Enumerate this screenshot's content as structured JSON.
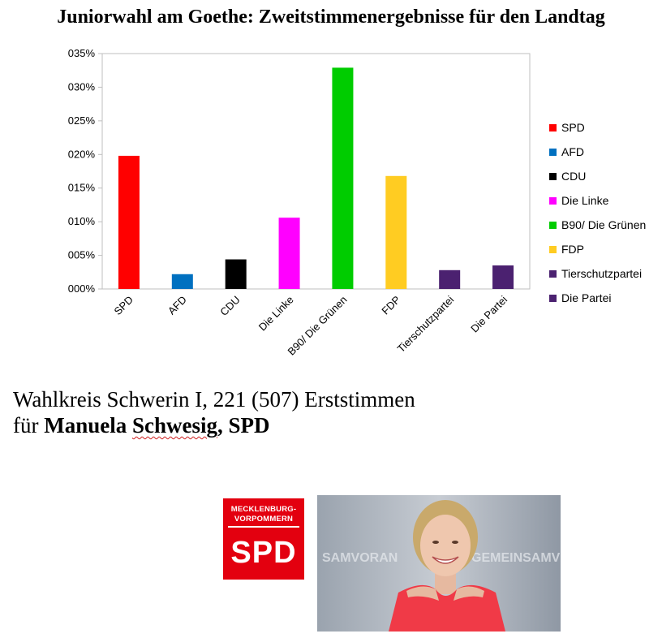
{
  "title": "Juniorwahl am Goethe: Zweitstimmenergebnisse für den Landtag",
  "chart_data": {
    "type": "bar",
    "categories": [
      "SPD",
      "AFD",
      "CDU",
      "Die Linke",
      "B90/ Die Grünen",
      "FDP",
      "Tierschutzpartei",
      "Die Partei"
    ],
    "values": [
      19.8,
      2.2,
      4.4,
      10.6,
      32.9,
      16.8,
      2.8,
      3.5
    ],
    "colors": [
      "#ff0000",
      "#0070c0",
      "#000000",
      "#ff00ff",
      "#00cc00",
      "#ffcc22",
      "#4b2170",
      "#4b2170"
    ],
    "yticks": [
      0,
      5,
      10,
      15,
      20,
      25,
      30,
      35
    ],
    "ytick_labels": [
      "000%",
      "005%",
      "010%",
      "015%",
      "020%",
      "025%",
      "030%",
      "035%"
    ],
    "ylim": [
      0,
      35
    ],
    "grid": false,
    "legend_position": "right",
    "legend": [
      {
        "label": "SPD",
        "color": "#ff0000"
      },
      {
        "label": "AFD",
        "color": "#0070c0"
      },
      {
        "label": "CDU",
        "color": "#000000"
      },
      {
        "label": "Die Linke",
        "color": "#ff00ff"
      },
      {
        "label": "B90/ Die Grünen",
        "color": "#00cc00"
      },
      {
        "label": "FDP",
        "color": "#ffcc22"
      },
      {
        "label": "Tierschutzpartei",
        "color": "#4b2170"
      },
      {
        "label": "Die Partei",
        "color": "#4b2170"
      }
    ]
  },
  "caption": {
    "line1": "Wahlkreis Schwerin I, 221 (507) Erststimmen",
    "line2_prefix": "für ",
    "first_name": "Manuela",
    "last_name": "Schwesig",
    "party": ", SPD"
  },
  "logo": {
    "line1": "MECKLENBURG-",
    "line2": "VORPOMMERN",
    "mark": "SPD"
  },
  "photo": {
    "banner_left": "SAMVORAN",
    "banner_right": "GEMEINSAMV"
  }
}
